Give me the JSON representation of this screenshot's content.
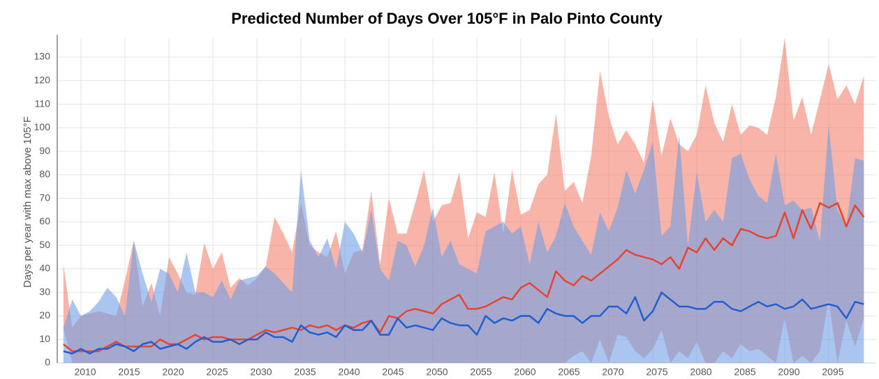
{
  "chart_data": {
    "type": "line",
    "title": "Predicted Number of Days Over 105°F in Palo Pinto County",
    "y_label": "Days per year with max above 105°F",
    "x": [
      2008,
      2009,
      2010,
      2011,
      2012,
      2013,
      2014,
      2015,
      2016,
      2017,
      2018,
      2019,
      2020,
      2021,
      2022,
      2023,
      2024,
      2025,
      2026,
      2027,
      2028,
      2029,
      2030,
      2031,
      2032,
      2033,
      2034,
      2035,
      2036,
      2037,
      2038,
      2039,
      2040,
      2041,
      2042,
      2043,
      2044,
      2045,
      2046,
      2047,
      2048,
      2049,
      2050,
      2051,
      2052,
      2053,
      2054,
      2055,
      2056,
      2057,
      2058,
      2059,
      2060,
      2061,
      2062,
      2063,
      2064,
      2065,
      2066,
      2067,
      2068,
      2069,
      2070,
      2071,
      2072,
      2073,
      2074,
      2075,
      2076,
      2077,
      2078,
      2079,
      2080,
      2081,
      2082,
      2083,
      2084,
      2085,
      2086,
      2087,
      2088,
      2089,
      2090,
      2091,
      2092,
      2093,
      2094,
      2095,
      2096,
      2097,
      2098,
      2099
    ],
    "series": [
      {
        "color": "#e8432e",
        "band_color": "#f4826f",
        "values": [
          8,
          5,
          5,
          5,
          5,
          7,
          9,
          7,
          7,
          7,
          7,
          10,
          8,
          8,
          10,
          12,
          10,
          11,
          11,
          10,
          10,
          10,
          12,
          14,
          13,
          14,
          15,
          14,
          16,
          15,
          16,
          14,
          16,
          15,
          17,
          18,
          13,
          20,
          19,
          22,
          23,
          22,
          21,
          25,
          27,
          29,
          23,
          23,
          24,
          26,
          28,
          27,
          32,
          34,
          31,
          28,
          39,
          35,
          33,
          37,
          35,
          38,
          41,
          44,
          48,
          46,
          45,
          44,
          42,
          45,
          40,
          49,
          47,
          53,
          48,
          53,
          50,
          57,
          56,
          54,
          53,
          54,
          64,
          53,
          65,
          57,
          68,
          66,
          68,
          58,
          67,
          62
        ],
        "band_upper": [
          42,
          15,
          20,
          21,
          22,
          21,
          20,
          35,
          52,
          24,
          34,
          20,
          45,
          38,
          30,
          29,
          51,
          40,
          47,
          32,
          36,
          33,
          36,
          41,
          62,
          55,
          47,
          68,
          50,
          47,
          45,
          56,
          38,
          47,
          48,
          73,
          42,
          70,
          55,
          55,
          68,
          82,
          60,
          67,
          68,
          81,
          53,
          64,
          62,
          81,
          55,
          82,
          63,
          65,
          76,
          80,
          106,
          73,
          77,
          68,
          88,
          124,
          105,
          93,
          99,
          93,
          85,
          112,
          88,
          104,
          93,
          90,
          97,
          118,
          102,
          94,
          110,
          97,
          101,
          100,
          97,
          113,
          138,
          103,
          113,
          97,
          112,
          127,
          112,
          118,
          110,
          122
        ],
        "band_lower": [
          15,
          0,
          0,
          0,
          0,
          0,
          0,
          0,
          0,
          0,
          0,
          0,
          0,
          0,
          0,
          0,
          0,
          0,
          0,
          0,
          0,
          0,
          0,
          0,
          0,
          0,
          0,
          0,
          0,
          0,
          0,
          0,
          0,
          0,
          0,
          0,
          0,
          0,
          0,
          0,
          0,
          0,
          0,
          0,
          0,
          0,
          0,
          0,
          0,
          0,
          0,
          0,
          0,
          0,
          0,
          0,
          0,
          0,
          3,
          5,
          0,
          10,
          0,
          12,
          11,
          5,
          2,
          6,
          14,
          0,
          5,
          2,
          9,
          0,
          0,
          5,
          2,
          8,
          5,
          6,
          3,
          0,
          19,
          0,
          3,
          0,
          5,
          27,
          0,
          18,
          7,
          19
        ]
      },
      {
        "color": "#1f5fcf",
        "band_color": "#6f9ee6",
        "values": [
          5,
          4,
          6,
          4,
          6,
          6,
          8,
          7,
          5,
          8,
          9,
          6,
          7,
          8,
          6,
          9,
          11,
          9,
          9,
          10,
          8,
          10,
          10,
          13,
          11,
          11,
          9,
          16,
          13,
          12,
          13,
          11,
          16,
          14,
          14,
          18,
          12,
          12,
          19,
          15,
          16,
          15,
          14,
          19,
          17,
          16,
          16,
          12,
          20,
          17,
          19,
          18,
          20,
          20,
          17,
          23,
          21,
          20,
          20,
          17,
          20,
          20,
          24,
          24,
          21,
          28,
          18,
          22,
          30,
          27,
          24,
          24,
          23,
          23,
          26,
          26,
          23,
          22,
          24,
          26,
          24,
          25,
          23,
          24,
          27,
          23,
          24,
          25,
          24,
          19,
          26,
          25
        ],
        "band_upper": [
          15,
          27,
          20,
          22,
          26,
          32,
          28,
          20,
          52,
          38,
          26,
          40,
          38,
          30,
          47,
          30,
          30,
          28,
          35,
          27,
          35,
          36,
          37,
          41,
          38,
          34,
          30,
          82,
          52,
          45,
          53,
          40,
          60,
          55,
          47,
          65,
          40,
          35,
          52,
          50,
          41,
          50,
          66,
          45,
          52,
          42,
          40,
          38,
          56,
          58,
          60,
          55,
          58,
          42,
          60,
          47,
          54,
          68,
          58,
          52,
          46,
          64,
          56,
          66,
          82,
          72,
          82,
          94,
          54,
          58,
          97,
          50,
          81,
          60,
          65,
          60,
          87,
          89,
          78,
          71,
          68,
          89,
          67,
          69,
          65,
          66,
          52,
          101,
          65,
          58,
          87,
          86
        ],
        "band_lower": [
          0,
          0,
          0,
          0,
          0,
          0,
          0,
          0,
          0,
          0,
          0,
          0,
          0,
          0,
          0,
          0,
          0,
          0,
          0,
          0,
          0,
          0,
          0,
          0,
          0,
          0,
          0,
          0,
          0,
          0,
          0,
          0,
          0,
          0,
          0,
          0,
          0,
          0,
          0,
          0,
          0,
          0,
          0,
          0,
          0,
          0,
          0,
          0,
          0,
          0,
          0,
          0,
          0,
          0,
          0,
          0,
          0,
          0,
          0,
          0,
          0,
          0,
          0,
          0,
          0,
          0,
          0,
          0,
          0,
          0,
          0,
          0,
          0,
          0,
          0,
          0,
          0,
          0,
          0,
          0,
          0,
          0,
          0,
          0,
          0,
          0,
          0,
          0,
          0,
          0,
          0,
          0
        ]
      }
    ],
    "xlim": [
      2007.3,
      2100.4
    ],
    "xticks": [
      2010,
      2015,
      2020,
      2025,
      2030,
      2035,
      2040,
      2045,
      2050,
      2055,
      2060,
      2065,
      2070,
      2075,
      2080,
      2085,
      2090,
      2095
    ],
    "ylim": [
      0,
      138
    ],
    "yticks": [
      0,
      10,
      20,
      30,
      40,
      50,
      60,
      70,
      80,
      90,
      100,
      110,
      120,
      130
    ],
    "grid": true
  }
}
